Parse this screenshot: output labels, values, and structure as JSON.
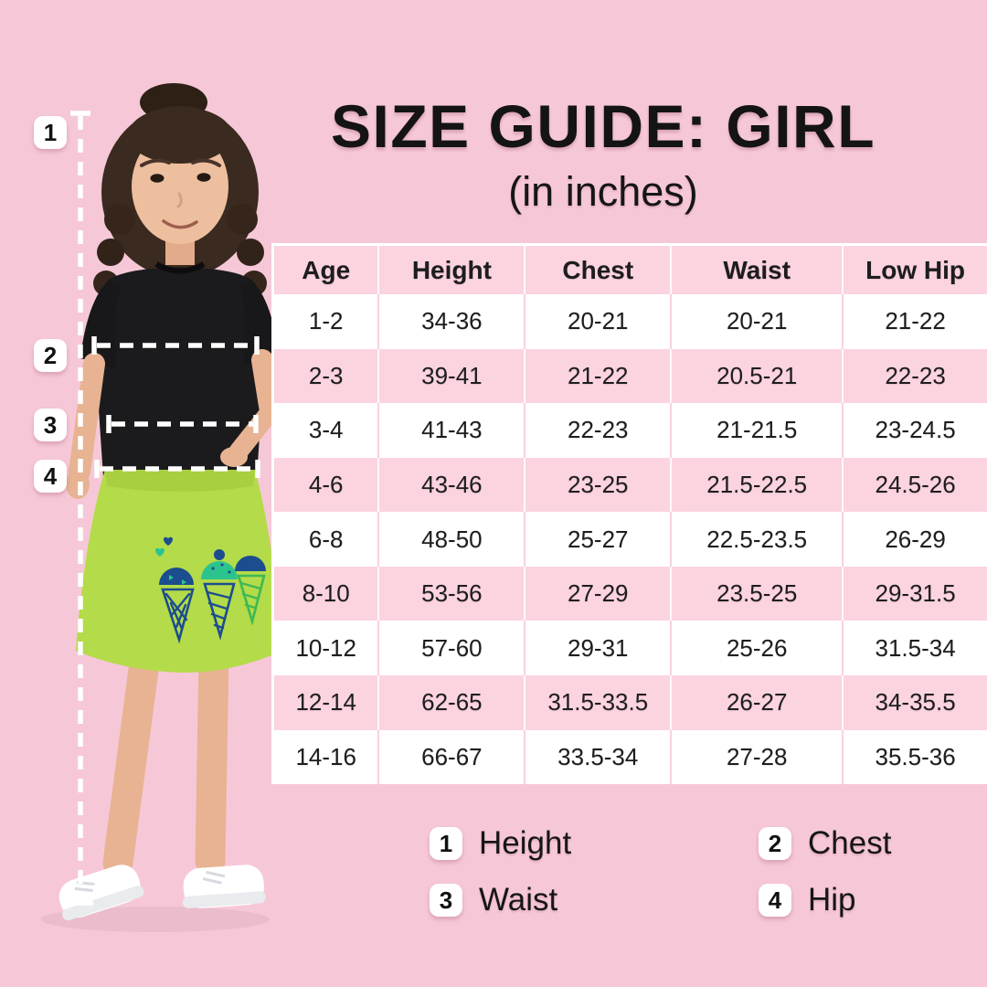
{
  "title": {
    "main": "SIZE GUIDE: GIRL",
    "subtitle": "(in inches)"
  },
  "table": {
    "headers": [
      "Age",
      "Height",
      "Chest",
      "Waist",
      "Low Hip"
    ],
    "rows": [
      [
        "1-2",
        "34-36",
        "20-21",
        "20-21",
        "21-22"
      ],
      [
        "2-3",
        "39-41",
        "21-22",
        "20.5-21",
        "22-23"
      ],
      [
        "3-4",
        "41-43",
        "22-23",
        "21-21.5",
        "23-24.5"
      ],
      [
        "4-6",
        "43-46",
        "23-25",
        "21.5-22.5",
        "24.5-26"
      ],
      [
        "6-8",
        "48-50",
        "25-27",
        "22.5-23.5",
        "26-29"
      ],
      [
        "8-10",
        "53-56",
        "27-29",
        "23.5-25",
        "29-31.5"
      ],
      [
        "10-12",
        "57-60",
        "29-31",
        "25-26",
        "31.5-34"
      ],
      [
        "12-14",
        "62-65",
        "31.5-33.5",
        "26-27",
        "34-35.5"
      ],
      [
        "14-16",
        "66-67",
        "33.5-34",
        "27-28",
        "35.5-36"
      ]
    ]
  },
  "figure_markers": [
    "1",
    "2",
    "3",
    "4"
  ],
  "legend": [
    {
      "num": "1",
      "label": "Height"
    },
    {
      "num": "2",
      "label": "Chest"
    },
    {
      "num": "3",
      "label": "Waist"
    },
    {
      "num": "4",
      "label": "Hip"
    }
  ],
  "colors": {
    "background": "#f6c8d7",
    "table_pink": "#fbd4e0",
    "table_white": "#ffffff",
    "text": "#1d1d1d",
    "badge_bg": "#ffffff",
    "measure_line": "#ffffff",
    "skirt_green": "#b4db49",
    "print_navy": "#1c4d8e",
    "print_teal": "#2cc48e"
  },
  "chart_data": {
    "type": "table",
    "title": "SIZE GUIDE: GIRL (in inches)",
    "columns": [
      "Age",
      "Height",
      "Chest",
      "Waist",
      "Low Hip"
    ],
    "rows": [
      [
        "1-2",
        "34-36",
        "20-21",
        "20-21",
        "21-22"
      ],
      [
        "2-3",
        "39-41",
        "21-22",
        "20.5-21",
        "22-23"
      ],
      [
        "3-4",
        "41-43",
        "22-23",
        "21-21.5",
        "23-24.5"
      ],
      [
        "4-6",
        "43-46",
        "23-25",
        "21.5-22.5",
        "24.5-26"
      ],
      [
        "6-8",
        "48-50",
        "25-27",
        "22.5-23.5",
        "26-29"
      ],
      [
        "8-10",
        "53-56",
        "27-29",
        "23.5-25",
        "29-31.5"
      ],
      [
        "10-12",
        "57-60",
        "29-31",
        "25-26",
        "31.5-34"
      ],
      [
        "12-14",
        "62-65",
        "31.5-33.5",
        "26-27",
        "34-35.5"
      ],
      [
        "14-16",
        "66-67",
        "33.5-34",
        "27-28",
        "35.5-36"
      ]
    ],
    "legend_notes": [
      "1 Height",
      "2 Chest",
      "3 Waist",
      "4 Hip"
    ]
  }
}
